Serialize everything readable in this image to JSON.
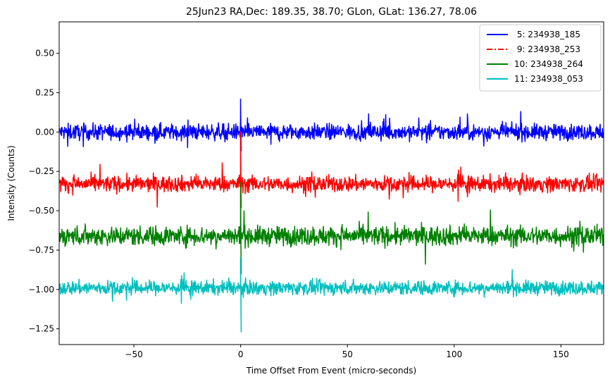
{
  "chart_data": {
    "type": "line",
    "title": "25Jun23 RA,Dec:  189.35,  38.70; GLon, GLat:  136.27,  78.06",
    "xlabel": "Time Offset From Event (micro-seconds)",
    "ylabel": "Intensity (Counts)",
    "xlim": [
      -85,
      170
    ],
    "ylim": [
      -1.35,
      0.7
    ],
    "xticks": [
      -50,
      0,
      50,
      100,
      150
    ],
    "xtick_labels": [
      "−50",
      "0",
      "50",
      "100",
      "150"
    ],
    "yticks": [
      0.5,
      0.25,
      0.0,
      -0.25,
      -0.5,
      -0.75,
      -1.0,
      -1.25
    ],
    "ytick_labels": [
      "0.50",
      "0.25",
      "0.00",
      "−0.25",
      "−0.50",
      "−0.75",
      "−1.00",
      "−1.25"
    ],
    "grid": false,
    "legend_position": "top-right",
    "series": [
      {
        "name": " 5: 234938_185",
        "color": "#0000ff",
        "style": "solid",
        "baseline": 0.0,
        "noise_amplitude": 0.045,
        "spike": {
          "x": 0.0,
          "values": [
            0.21,
            -0.12
          ]
        }
      },
      {
        "name": " 9: 234938_253",
        "color": "#ff0000",
        "style": "dashdot",
        "baseline": -0.33,
        "noise_amplitude": 0.045,
        "spike": {
          "x": 0.0,
          "values": [
            0.0,
            -0.48
          ]
        }
      },
      {
        "name": "10: 234938_264",
        "color": "#008000",
        "style": "solid",
        "baseline": -0.66,
        "noise_amplitude": 0.055,
        "spike": {
          "x": 0.0,
          "values": [
            -0.32,
            -0.9
          ]
        }
      },
      {
        "name": "11: 234938_053",
        "color": "#00bfbf",
        "style": "solid",
        "baseline": -0.99,
        "noise_amplitude": 0.04,
        "spike": {
          "x": 0.0,
          "values": [
            -0.8,
            -1.27
          ]
        }
      }
    ]
  }
}
